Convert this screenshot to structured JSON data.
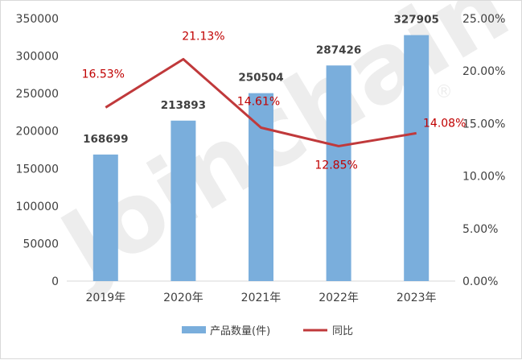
{
  "chart_data": {
    "type": "bar",
    "categories": [
      "2019年",
      "2020年",
      "2021年",
      "2022年",
      "2023年"
    ],
    "series": [
      {
        "name": "产品数量(件)",
        "type": "bar",
        "axis": "left",
        "color": "#7aaedc",
        "values": [
          168699,
          213893,
          250504,
          287426,
          327905
        ],
        "labels": [
          "168699",
          "213893",
          "250504",
          "287426",
          "327905"
        ]
      },
      {
        "name": "同比",
        "type": "line",
        "axis": "right",
        "color": "#c0393b",
        "values": [
          16.53,
          21.13,
          14.61,
          12.85,
          14.08
        ],
        "labels": [
          "16.53%",
          "21.13%",
          "14.61%",
          "12.85%",
          "14.08%"
        ]
      }
    ],
    "ylim": [
      0,
      350000
    ],
    "y_ticks": [
      "0",
      "50000",
      "100000",
      "150000",
      "200000",
      "250000",
      "300000",
      "350000"
    ],
    "y2lim": [
      0,
      25
    ],
    "y2_ticks": [
      "0.00%",
      "5.00%",
      "10.00%",
      "15.00%",
      "20.00%",
      "25.00%"
    ],
    "grid": false,
    "legend_position": "bottom"
  },
  "watermark": {
    "text": "Joinchain",
    "mark": "®"
  }
}
